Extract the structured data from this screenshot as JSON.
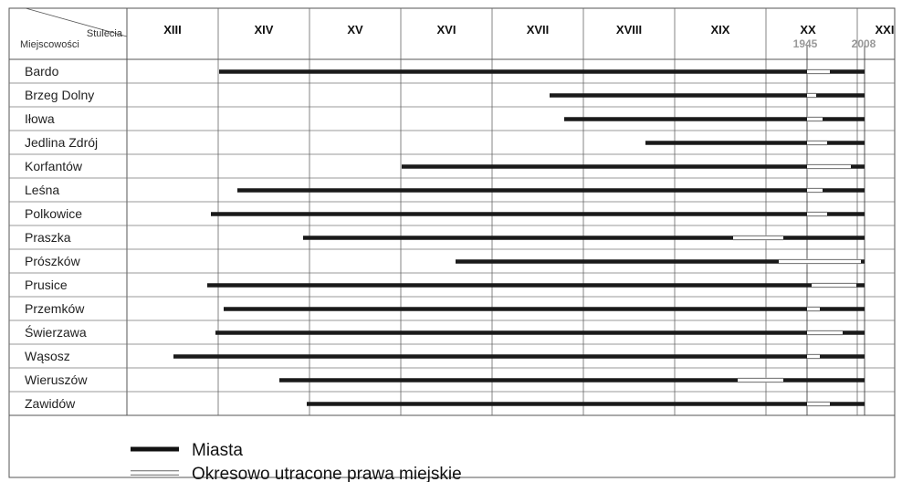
{
  "chart_data": {
    "type": "timeline",
    "corner": {
      "top": "Stulecia",
      "bottom": "Miejscowości"
    },
    "centuries": [
      {
        "label": "XIII",
        "start": 1200
      },
      {
        "label": "XIV",
        "start": 1300
      },
      {
        "label": "XV",
        "start": 1400
      },
      {
        "label": "XVI",
        "start": 1500
      },
      {
        "label": "XVII",
        "start": 1600
      },
      {
        "label": "XVIII",
        "start": 1700
      },
      {
        "label": "XIX",
        "start": 1800
      },
      {
        "label": "XX",
        "start": 1900
      },
      {
        "label": "XXI",
        "start": 2000
      }
    ],
    "markers": [
      {
        "label": "1945",
        "year": 1945
      },
      {
        "label": "2008",
        "year": 2008
      }
    ],
    "cities": [
      {
        "name": "Bardo",
        "start": 1301,
        "lost": [
          [
            1945,
            1970
          ]
        ]
      },
      {
        "name": "Brzeg Dolny",
        "start": 1663,
        "lost": [
          [
            1945,
            1955
          ]
        ]
      },
      {
        "name": "Iłowa",
        "start": 1679,
        "lost": [
          [
            1945,
            1962
          ]
        ]
      },
      {
        "name": "Jedlina Zdrój",
        "start": 1768,
        "lost": [
          [
            1945,
            1967
          ]
        ]
      },
      {
        "name": "Korfantów",
        "start": 1501,
        "lost": [
          [
            1945,
            1993
          ]
        ]
      },
      {
        "name": "Leśna",
        "start": 1321,
        "lost": [
          [
            1945,
            1962
          ]
        ]
      },
      {
        "name": "Polkowice",
        "start": 1292,
        "lost": [
          [
            1945,
            1967
          ]
        ]
      },
      {
        "name": "Praszka",
        "start": 1393,
        "lost": [
          [
            1864,
            1919
          ]
        ]
      },
      {
        "name": "Prószków",
        "start": 1560,
        "lost": [
          [
            1914,
            2004
          ]
        ]
      },
      {
        "name": "Prusice",
        "start": 1288,
        "lost": [
          [
            1950,
            1999
          ]
        ]
      },
      {
        "name": "Przemków",
        "start": 1306,
        "lost": [
          [
            1945,
            1959
          ]
        ]
      },
      {
        "name": "Świerzawa",
        "start": 1297,
        "lost": [
          [
            1945,
            1984
          ]
        ]
      },
      {
        "name": "Wąsosz",
        "start": 1251,
        "lost": [
          [
            1945,
            1959
          ]
        ]
      },
      {
        "name": "Wieruszów",
        "start": 1367,
        "lost": [
          [
            1869,
            1919
          ]
        ]
      },
      {
        "name": "Zawidów",
        "start": 1397,
        "lost": [
          [
            1945,
            1970
          ]
        ]
      }
    ],
    "end_year": 2008,
    "legend": [
      {
        "style": "solid",
        "label": "Miasta"
      },
      {
        "style": "double",
        "label": "Okresowo utracone prawa miejskie"
      }
    ]
  }
}
